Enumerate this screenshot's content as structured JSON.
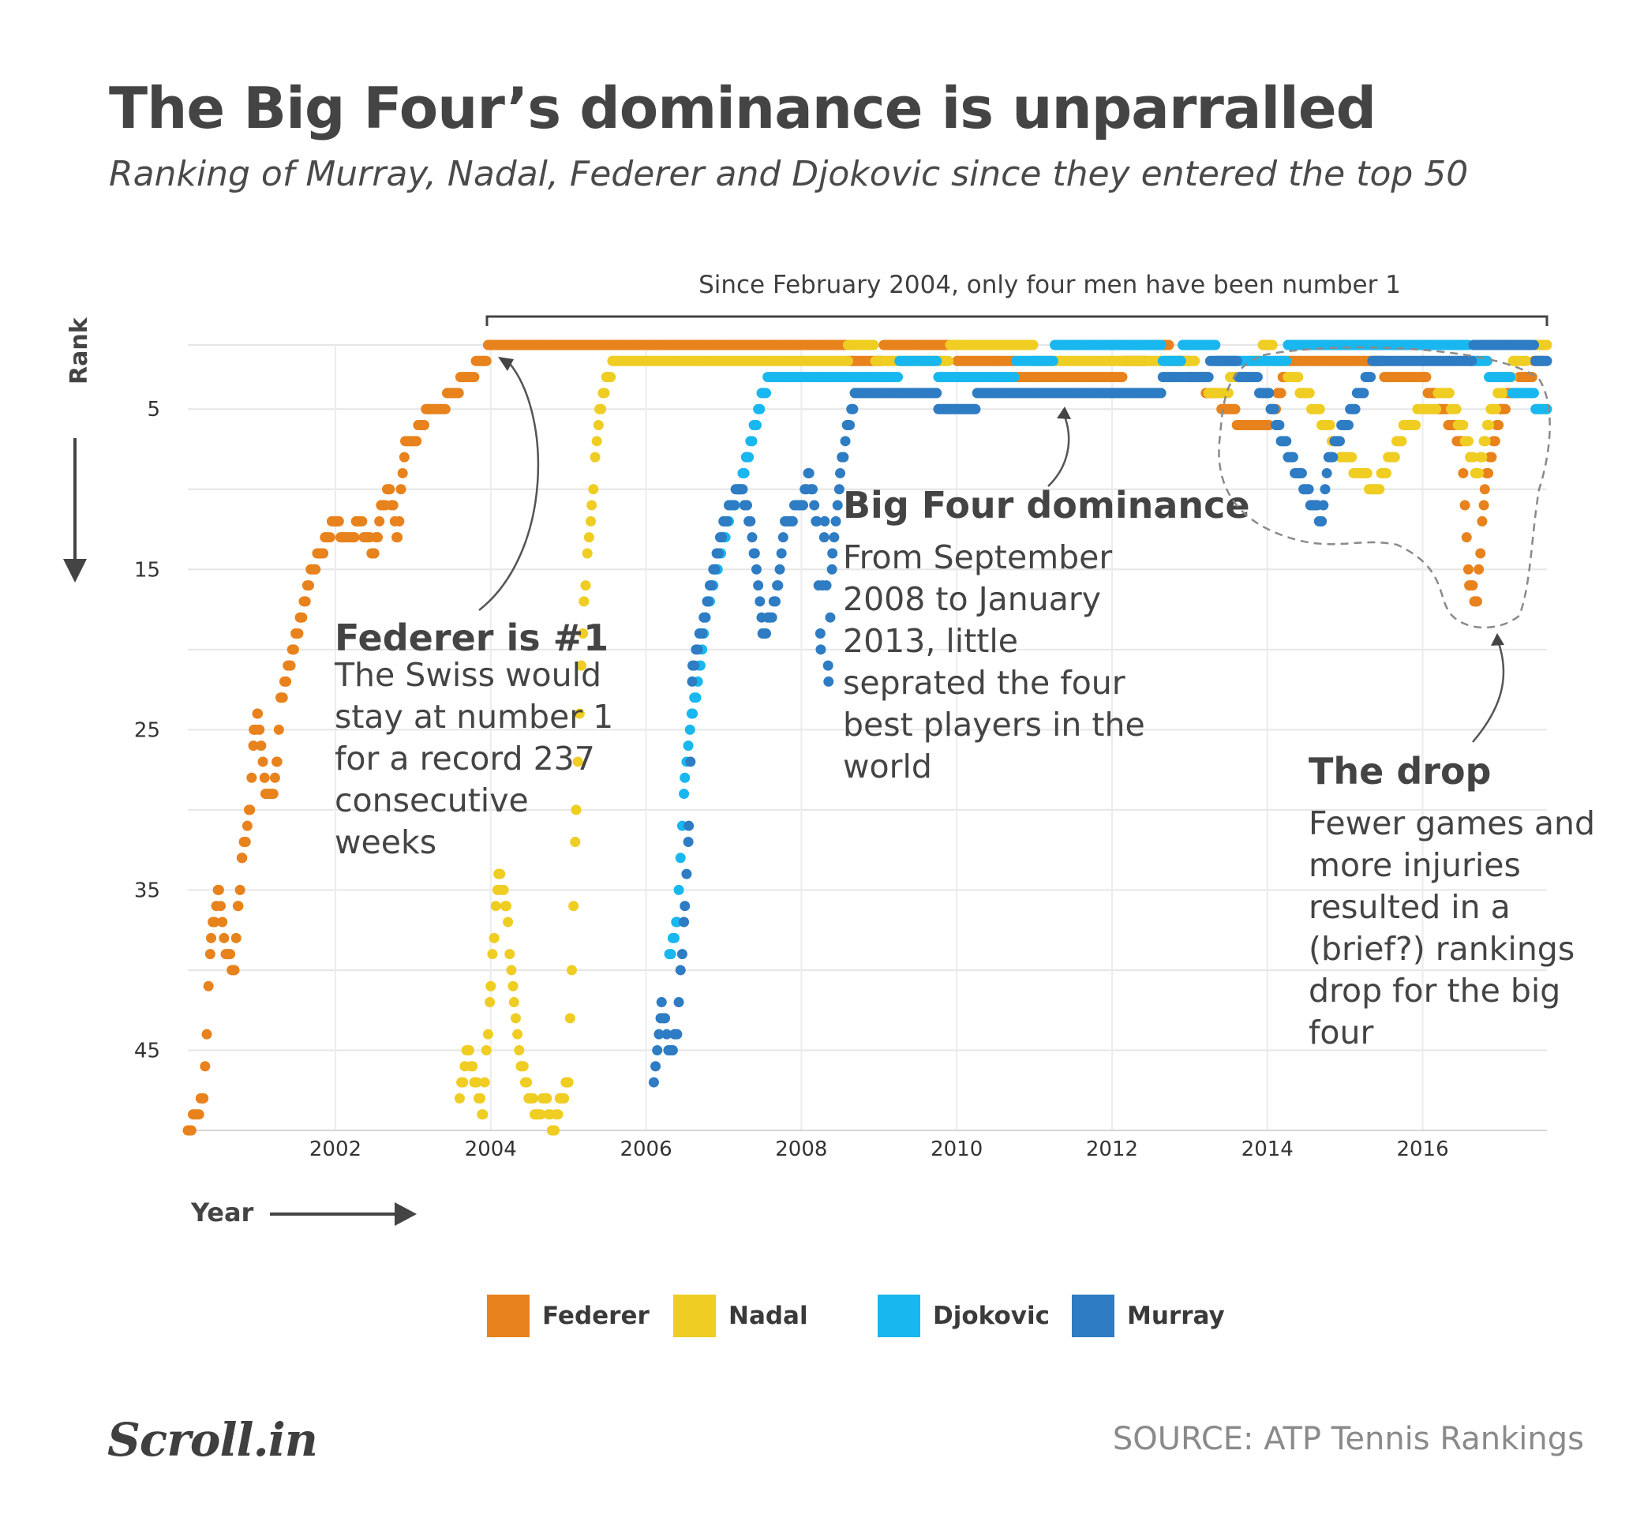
{
  "title": "The Big Four’s dominance is unparralled",
  "subtitle": "Ranking of Murray, Nadal, Federer and Djokovic since they entered the top 50",
  "bracket_label": "Since February 2004, only four men have been number 1",
  "annotations": {
    "federer": {
      "heading": "Federer is #1",
      "lines": [
        "The Swiss would",
        "stay at number 1",
        "for a record 237",
        "consecutive",
        "weeks"
      ]
    },
    "dominance": {
      "heading": "Big Four dominance",
      "lines": [
        "From September",
        "2008 to January",
        "2013, little",
        "seprated the four",
        "best players in the",
        "world"
      ]
    },
    "drop": {
      "heading": "The drop",
      "lines": [
        "Fewer games and",
        "more injuries",
        "resulted in a",
        "(brief?) rankings",
        "drop for the big",
        "four"
      ]
    }
  },
  "colors": {
    "Federer": "#e8821c",
    "Nadal": "#efcd22",
    "Djokovic": "#18b7ef",
    "Murray": "#2e7cc3"
  },
  "legend": [
    {
      "label": "Federer",
      "color": "#e8821c"
    },
    {
      "label": "Nadal",
      "color": "#efcd22"
    },
    {
      "label": "Djokovic",
      "color": "#18b7ef"
    },
    {
      "label": "Murray",
      "color": "#2e7cc3"
    }
  ],
  "source": "SOURCE: ATP Tennis Rankings",
  "logo": "Scroll.in",
  "chart_data": {
    "type": "scatter",
    "title": "The Big Four’s dominance is unparralled",
    "xlabel": "Year",
    "ylabel": "Rank",
    "xlim": [
      2000.1,
      2017.6
    ],
    "ylim": [
      50,
      1
    ],
    "y_axis_inverted": true,
    "x_ticks": [
      2002,
      2004,
      2006,
      2008,
      2010,
      2012,
      2014,
      2016
    ],
    "y_ticks": [
      5,
      15,
      25,
      35,
      45
    ],
    "grid": true,
    "series": [
      {
        "name": "Federer",
        "anchors": [
          [
            2000.1,
            50
          ],
          [
            2000.2,
            49
          ],
          [
            2000.3,
            48
          ],
          [
            2000.4,
            38
          ],
          [
            2000.5,
            35
          ],
          [
            2000.6,
            39
          ],
          [
            2000.7,
            40
          ],
          [
            2000.75,
            36
          ],
          [
            2000.8,
            33
          ],
          [
            2000.9,
            30
          ],
          [
            2000.95,
            25
          ],
          [
            2001.0,
            24
          ],
          [
            2001.1,
            29
          ],
          [
            2001.2,
            29
          ],
          [
            2001.25,
            27
          ],
          [
            2001.3,
            23
          ],
          [
            2001.4,
            21
          ],
          [
            2001.5,
            19
          ],
          [
            2001.55,
            18
          ],
          [
            2001.7,
            15
          ],
          [
            2001.8,
            14
          ],
          [
            2002.0,
            12
          ],
          [
            2002.1,
            13
          ],
          [
            2002.2,
            13
          ],
          [
            2002.3,
            12
          ],
          [
            2002.4,
            13
          ],
          [
            2002.5,
            14
          ],
          [
            2002.6,
            11
          ],
          [
            2002.7,
            10
          ],
          [
            2002.8,
            13
          ],
          [
            2002.9,
            7
          ],
          [
            2003.0,
            7
          ],
          [
            2003.1,
            6
          ],
          [
            2003.2,
            5
          ],
          [
            2003.35,
            5
          ],
          [
            2003.5,
            4
          ],
          [
            2003.7,
            3
          ],
          [
            2003.9,
            2
          ],
          [
            2004.0,
            1
          ],
          [
            2008.6,
            1
          ],
          [
            2008.6,
            2
          ],
          [
            2009.5,
            1
          ],
          [
            2010.5,
            2
          ],
          [
            2011.0,
            3
          ],
          [
            2012.0,
            3
          ],
          [
            2012.6,
            1
          ],
          [
            2012.9,
            2
          ],
          [
            2013.3,
            4
          ],
          [
            2013.7,
            6
          ],
          [
            2014.0,
            6
          ],
          [
            2014.3,
            2
          ],
          [
            2015.0,
            2
          ],
          [
            2016.0,
            3
          ],
          [
            2016.5,
            7
          ],
          [
            2016.6,
            16
          ],
          [
            2016.7,
            17
          ],
          [
            2016.8,
            10
          ],
          [
            2017.0,
            5
          ],
          [
            2017.3,
            3
          ],
          [
            2017.55,
            2
          ]
        ]
      },
      {
        "name": "Nadal",
        "anchors": [
          [
            2003.6,
            48
          ],
          [
            2003.7,
            45
          ],
          [
            2003.8,
            47
          ],
          [
            2003.9,
            49
          ],
          [
            2004.0,
            41
          ],
          [
            2004.1,
            34
          ],
          [
            2004.2,
            36
          ],
          [
            2004.3,
            42
          ],
          [
            2004.4,
            46
          ],
          [
            2004.5,
            48
          ],
          [
            2004.6,
            49
          ],
          [
            2004.7,
            48
          ],
          [
            2004.8,
            50
          ],
          [
            2004.9,
            48
          ],
          [
            2005.0,
            47
          ],
          [
            2005.1,
            30
          ],
          [
            2005.2,
            17
          ],
          [
            2005.3,
            11
          ],
          [
            2005.4,
            5
          ],
          [
            2005.5,
            3
          ],
          [
            2005.6,
            2
          ],
          [
            2008.6,
            2
          ],
          [
            2008.6,
            1
          ],
          [
            2009.3,
            2
          ],
          [
            2010.5,
            1
          ],
          [
            2011.5,
            2
          ],
          [
            2013.0,
            2
          ],
          [
            2013.3,
            4
          ],
          [
            2013.7,
            3
          ],
          [
            2014.0,
            1
          ],
          [
            2014.5,
            4
          ],
          [
            2015.0,
            8
          ],
          [
            2015.4,
            10
          ],
          [
            2015.8,
            6
          ],
          [
            2016.3,
            4
          ],
          [
            2016.5,
            6
          ],
          [
            2016.7,
            9
          ],
          [
            2016.9,
            5
          ],
          [
            2017.2,
            2
          ],
          [
            2017.5,
            1
          ],
          [
            2017.6,
            1
          ]
        ]
      },
      {
        "name": "Djokovic",
        "anchors": [
          [
            2006.3,
            39
          ],
          [
            2006.4,
            37
          ],
          [
            2006.5,
            28
          ],
          [
            2006.6,
            24
          ],
          [
            2006.7,
            21
          ],
          [
            2006.8,
            17
          ],
          [
            2006.9,
            15
          ],
          [
            2007.0,
            13
          ],
          [
            2007.1,
            11
          ],
          [
            2007.2,
            10
          ],
          [
            2007.3,
            8
          ],
          [
            2007.4,
            6
          ],
          [
            2007.5,
            4
          ],
          [
            2007.6,
            3
          ],
          [
            2008.6,
            3
          ],
          [
            2009.0,
            3
          ],
          [
            2009.5,
            2
          ],
          [
            2010.0,
            3
          ],
          [
            2010.5,
            3
          ],
          [
            2011.0,
            2
          ],
          [
            2011.5,
            1
          ],
          [
            2012.5,
            1
          ],
          [
            2012.8,
            2
          ],
          [
            2013.0,
            1
          ],
          [
            2013.7,
            2
          ],
          [
            2014.2,
            2
          ],
          [
            2014.3,
            1
          ],
          [
            2016.5,
            1
          ],
          [
            2016.7,
            2
          ],
          [
            2017.0,
            3
          ],
          [
            2017.3,
            4
          ],
          [
            2017.6,
            5
          ]
        ]
      },
      {
        "name": "Murray",
        "anchors": [
          [
            2006.1,
            47
          ],
          [
            2006.2,
            42
          ],
          [
            2006.3,
            45
          ],
          [
            2006.4,
            44
          ],
          [
            2006.5,
            36
          ],
          [
            2006.55,
            31
          ],
          [
            2006.6,
            21
          ],
          [
            2006.7,
            19
          ],
          [
            2006.8,
            17
          ],
          [
            2007.0,
            12
          ],
          [
            2007.2,
            10
          ],
          [
            2007.3,
            11
          ],
          [
            2007.4,
            14
          ],
          [
            2007.5,
            19
          ],
          [
            2007.6,
            18
          ],
          [
            2007.7,
            16
          ],
          [
            2007.8,
            12
          ],
          [
            2008.0,
            11
          ],
          [
            2008.1,
            9
          ],
          [
            2008.2,
            12
          ],
          [
            2008.25,
            20
          ],
          [
            2008.3,
            12
          ],
          [
            2008.35,
            22
          ],
          [
            2008.4,
            14
          ],
          [
            2008.5,
            9
          ],
          [
            2008.6,
            6
          ],
          [
            2008.7,
            4
          ],
          [
            2009.0,
            4
          ],
          [
            2009.5,
            4
          ],
          [
            2010.0,
            5
          ],
          [
            2010.5,
            4
          ],
          [
            2011.0,
            4
          ],
          [
            2011.5,
            4
          ],
          [
            2012.0,
            4
          ],
          [
            2012.5,
            4
          ],
          [
            2012.8,
            3
          ],
          [
            2013.0,
            3
          ],
          [
            2013.5,
            2
          ],
          [
            2014.0,
            4
          ],
          [
            2014.2,
            7
          ],
          [
            2014.4,
            9
          ],
          [
            2014.6,
            11
          ],
          [
            2014.7,
            12
          ],
          [
            2014.8,
            8
          ],
          [
            2015.0,
            6
          ],
          [
            2015.4,
            2
          ],
          [
            2016.0,
            2
          ],
          [
            2016.5,
            2
          ],
          [
            2016.8,
            1
          ],
          [
            2017.0,
            1
          ],
          [
            2017.3,
            1
          ],
          [
            2017.6,
            2
          ]
        ]
      }
    ]
  }
}
